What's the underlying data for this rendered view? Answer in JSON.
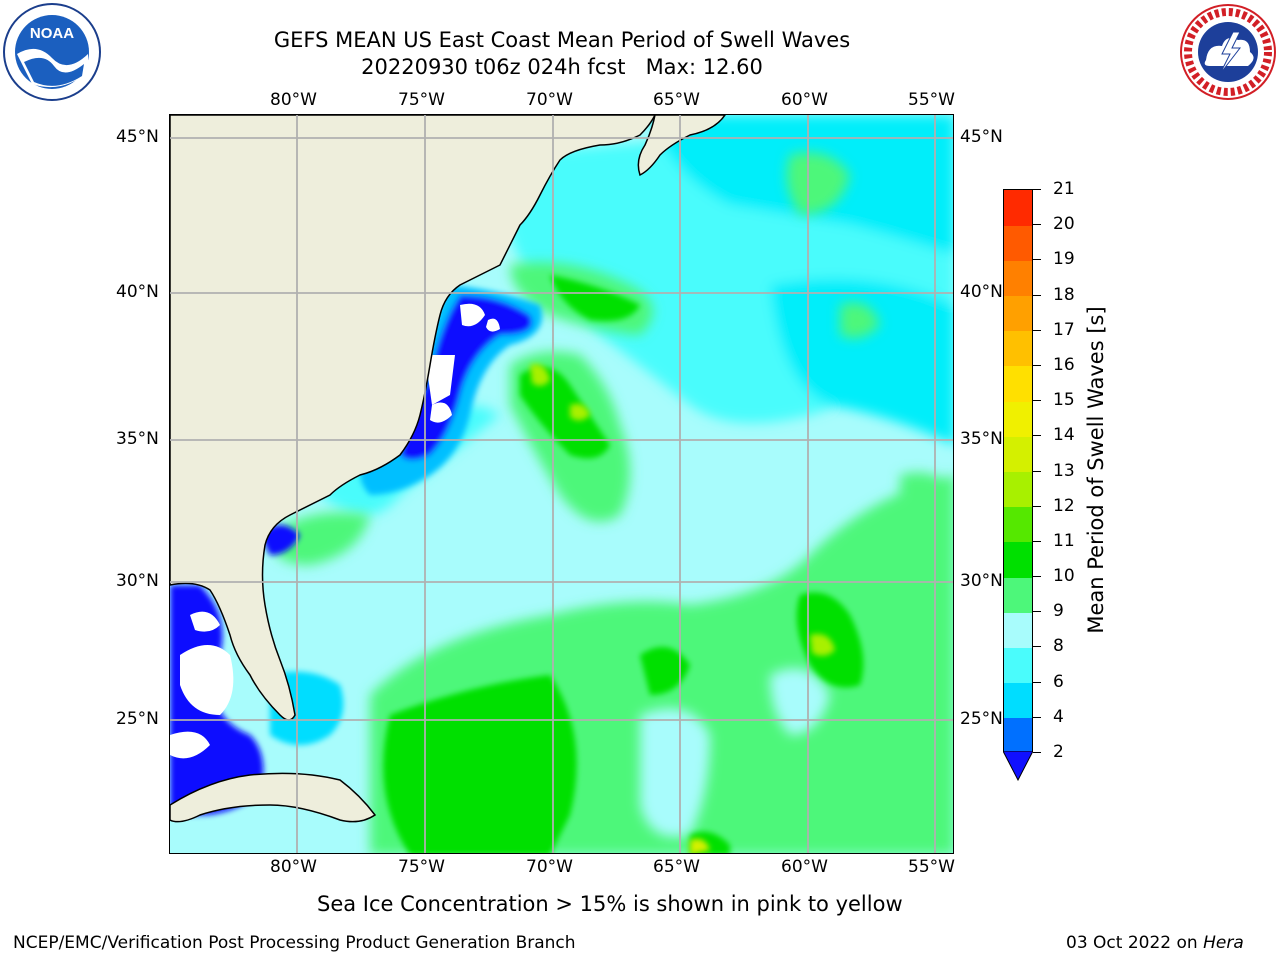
{
  "title": {
    "line1": "GEFS MEAN US East Coast Mean Period of Swell Waves",
    "line2": "20220930 t06z 024h fcst   Max: 12.60"
  },
  "logos": {
    "left": "NOAA",
    "right": "NATIONAL WEATHER SERVICE"
  },
  "axes": {
    "lon_labels": [
      "80°W",
      "75°W",
      "70°W",
      "65°W",
      "60°W",
      "55°W"
    ],
    "lat_labels": [
      "45°N",
      "40°N",
      "35°N",
      "30°N",
      "25°N"
    ]
  },
  "colorbar": {
    "label": "Mean Period of Swell Waves [s]",
    "ticks": [
      "2",
      "4",
      "6",
      "8",
      "9",
      "10",
      "11",
      "12",
      "13",
      "14",
      "15",
      "16",
      "17",
      "18",
      "19",
      "20",
      "21"
    ],
    "colors": [
      "#0070ff",
      "#00ddff",
      "#4afcfc",
      "#a8fcfc",
      "#4df77a",
      "#00e000",
      "#55e800",
      "#a8f000",
      "#d4f000",
      "#f0f000",
      "#ffe000",
      "#ffc000",
      "#ffa000",
      "#ff8000",
      "#ff5a00",
      "#ff2a00",
      "#ff0000"
    ],
    "extend_low_color": "#1010ff"
  },
  "footer": {
    "note": "Sea Ice Concentration > 15% is shown in pink to yellow",
    "credit": "NCEP/EMC/Verification Post Processing Product Generation Branch",
    "date": "03 Oct 2022 on ",
    "host": "Hera"
  },
  "map_colors": {
    "land": "#eeeedc",
    "ocean_base": "#a8fcfc",
    "gridline": "#b0b0b0"
  }
}
